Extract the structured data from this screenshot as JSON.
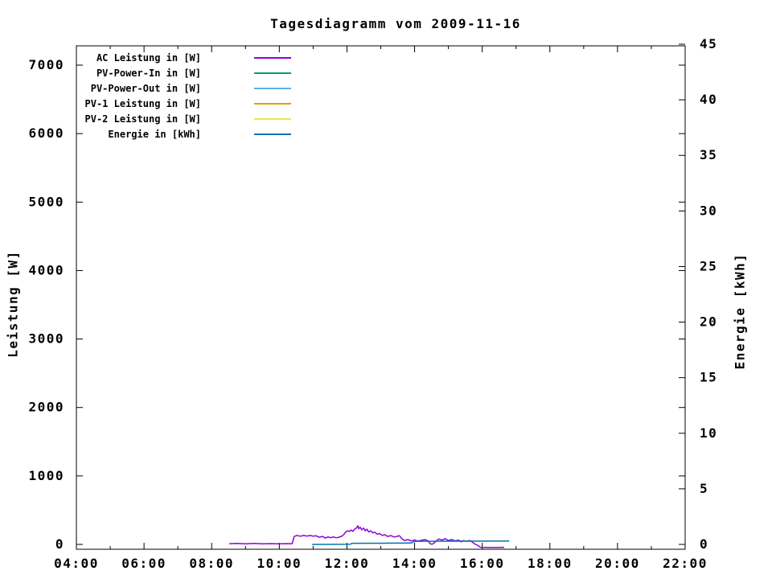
{
  "chart_data": {
    "type": "line",
    "title": "Tagesdiagramm vom 2009-11-16",
    "x_axis": {
      "start": "04:00",
      "end": "22:00",
      "range_hours": [
        4,
        22
      ],
      "major_step_hours": 2,
      "minor_step_hours": 1,
      "major_tick_labels": [
        "04:00",
        "06:00",
        "08:00",
        "10:00",
        "12:00",
        "14:00",
        "16:00",
        "18:00",
        "20:00",
        "22:00"
      ]
    },
    "y_left": {
      "label": "Leistung [W]",
      "min": 0,
      "max": 7000,
      "tick_step": 1000,
      "tick_labels": [
        "0",
        "1000",
        "2000",
        "3000",
        "4000",
        "5000",
        "6000",
        "7000"
      ]
    },
    "y_right": {
      "label": "Energie [kWh]",
      "min": 0,
      "max": 45,
      "tick_step": 5,
      "tick_labels": [
        "0",
        "5",
        "10",
        "15",
        "20",
        "25",
        "30",
        "35",
        "40",
        "45"
      ]
    },
    "grid": false,
    "legend_position": "inside-top-left",
    "legend": [
      {
        "label": "AC Leistung in [W]",
        "color": "#9400d3"
      },
      {
        "label": "PV-Power-In in [W]",
        "color": "#009e73"
      },
      {
        "label": "PV-Power-Out in [W]",
        "color": "#56b4e9"
      },
      {
        "label": "PV-1 Leistung in [W]",
        "color": "#e69f00"
      },
      {
        "label": "PV-2 Leistung in [W]",
        "color": "#f0e442"
      },
      {
        "label": "Energie in [kWh]",
        "color": "#0072b2"
      }
    ],
    "series": [
      {
        "name": "AC Leistung in [W]",
        "color": "#9400d3",
        "axis": "left",
        "unit": "W",
        "points": [
          [
            8.52,
            10
          ],
          [
            8.75,
            14
          ],
          [
            9.0,
            8
          ],
          [
            9.25,
            14
          ],
          [
            9.5,
            8
          ],
          [
            9.75,
            12
          ],
          [
            10.0,
            8
          ],
          [
            10.2,
            12
          ],
          [
            10.38,
            10
          ],
          [
            10.44,
            115
          ],
          [
            10.52,
            132
          ],
          [
            10.62,
            120
          ],
          [
            10.72,
            130
          ],
          [
            10.82,
            122
          ],
          [
            10.92,
            130
          ],
          [
            11.0,
            120
          ],
          [
            11.08,
            127
          ],
          [
            11.18,
            105
          ],
          [
            11.28,
            118
          ],
          [
            11.36,
            92
          ],
          [
            11.44,
            110
          ],
          [
            11.52,
            98
          ],
          [
            11.6,
            110
          ],
          [
            11.68,
            96
          ],
          [
            11.76,
            106
          ],
          [
            11.84,
            118
          ],
          [
            11.92,
            150
          ],
          [
            11.97,
            185
          ],
          [
            12.02,
            200
          ],
          [
            12.07,
            188
          ],
          [
            12.12,
            210
          ],
          [
            12.17,
            192
          ],
          [
            12.22,
            220
          ],
          [
            12.28,
            238
          ],
          [
            12.32,
            272
          ],
          [
            12.35,
            228
          ],
          [
            12.39,
            252
          ],
          [
            12.44,
            212
          ],
          [
            12.49,
            240
          ],
          [
            12.54,
            198
          ],
          [
            12.59,
            222
          ],
          [
            12.64,
            182
          ],
          [
            12.7,
            200
          ],
          [
            12.76,
            168
          ],
          [
            12.82,
            180
          ],
          [
            12.9,
            148
          ],
          [
            12.97,
            158
          ],
          [
            13.04,
            132
          ],
          [
            13.12,
            142
          ],
          [
            13.2,
            118
          ],
          [
            13.3,
            128
          ],
          [
            13.4,
            108
          ],
          [
            13.48,
            118
          ],
          [
            13.55,
            128
          ],
          [
            13.62,
            86
          ],
          [
            13.7,
            58
          ],
          [
            13.8,
            70
          ],
          [
            13.9,
            52
          ],
          [
            14.0,
            64
          ],
          [
            14.1,
            48
          ],
          [
            14.2,
            60
          ],
          [
            14.3,
            70
          ],
          [
            14.4,
            52
          ],
          [
            14.46,
            12
          ],
          [
            14.52,
            2
          ],
          [
            14.58,
            22
          ],
          [
            14.66,
            58
          ],
          [
            14.72,
            80
          ],
          [
            14.82,
            62
          ],
          [
            14.9,
            84
          ],
          [
            15.0,
            58
          ],
          [
            15.1,
            70
          ],
          [
            15.2,
            52
          ],
          [
            15.3,
            64
          ],
          [
            15.37,
            38
          ],
          [
            15.45,
            56
          ],
          [
            15.55,
            44
          ],
          [
            15.62,
            58
          ],
          [
            15.7,
            38
          ],
          [
            15.78,
            6
          ],
          [
            15.86,
            -12
          ],
          [
            15.95,
            -42
          ],
          [
            16.1,
            -45
          ],
          [
            16.3,
            -44
          ],
          [
            16.5,
            -45
          ],
          [
            16.65,
            -42
          ]
        ]
      },
      {
        "name": "PV-Power-In in [W]",
        "color": "#009e73",
        "axis": "left",
        "unit": "W",
        "points": []
      },
      {
        "name": "PV-Power-Out in [W]",
        "color": "#56b4e9",
        "axis": "left",
        "unit": "W",
        "points": []
      },
      {
        "name": "PV-1 Leistung in [W]",
        "color": "#e69f00",
        "axis": "left",
        "unit": "W",
        "points": []
      },
      {
        "name": "PV-2 Leistung in [W]",
        "color": "#f0e442",
        "axis": "left",
        "unit": "W",
        "points": []
      },
      {
        "name": "Energie in [kWh]",
        "color": "#0072b2",
        "axis": "right",
        "unit": "kWh",
        "points": [
          [
            10.97,
            0.0
          ],
          [
            11.6,
            0.01
          ],
          [
            12.1,
            0.02
          ],
          [
            12.16,
            0.1
          ],
          [
            13.0,
            0.11
          ],
          [
            13.9,
            0.13
          ],
          [
            14.02,
            0.28
          ],
          [
            15.0,
            0.29
          ],
          [
            16.0,
            0.3
          ],
          [
            16.8,
            0.31
          ]
        ]
      }
    ]
  }
}
